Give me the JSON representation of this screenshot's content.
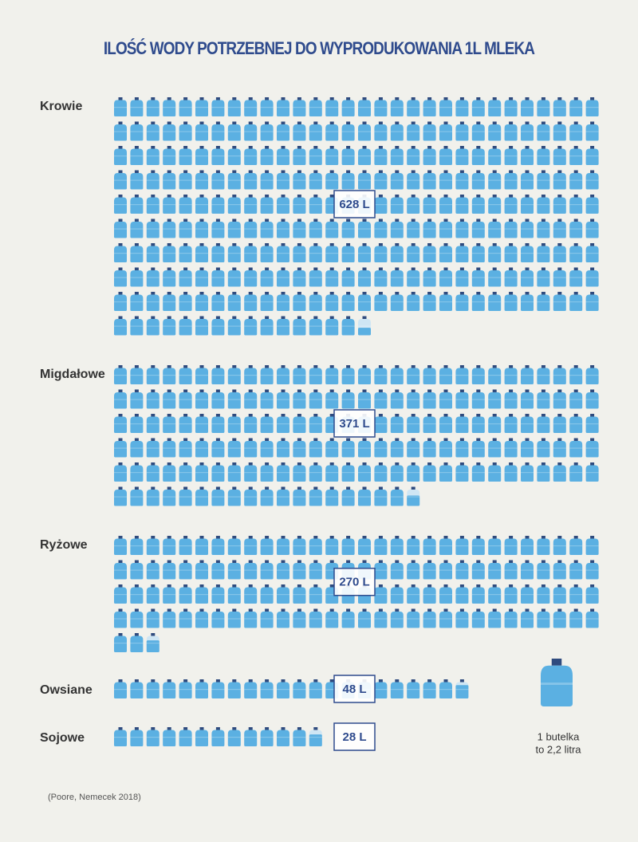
{
  "chart_data": {
    "type": "pictograph",
    "title": "ILOŚĆ WODY POTRZEBNEJ DO WYPRODUKOWANIA 1L  MLEKA",
    "categories": [
      "Krowie",
      "Migdałowe",
      "Ryżowe",
      "Owsiane",
      "Sojowe"
    ],
    "values": [
      628,
      371,
      270,
      48,
      28
    ],
    "value_labels": [
      "628 L",
      "371 L",
      "270 L",
      "48 L",
      "28 L"
    ],
    "unit_value": 2.2,
    "legend_text": [
      "1 butelka",
      "to 2,2 litra"
    ],
    "color": "#5bb0e2",
    "source": "(Poore, Nemecek 2018)"
  }
}
